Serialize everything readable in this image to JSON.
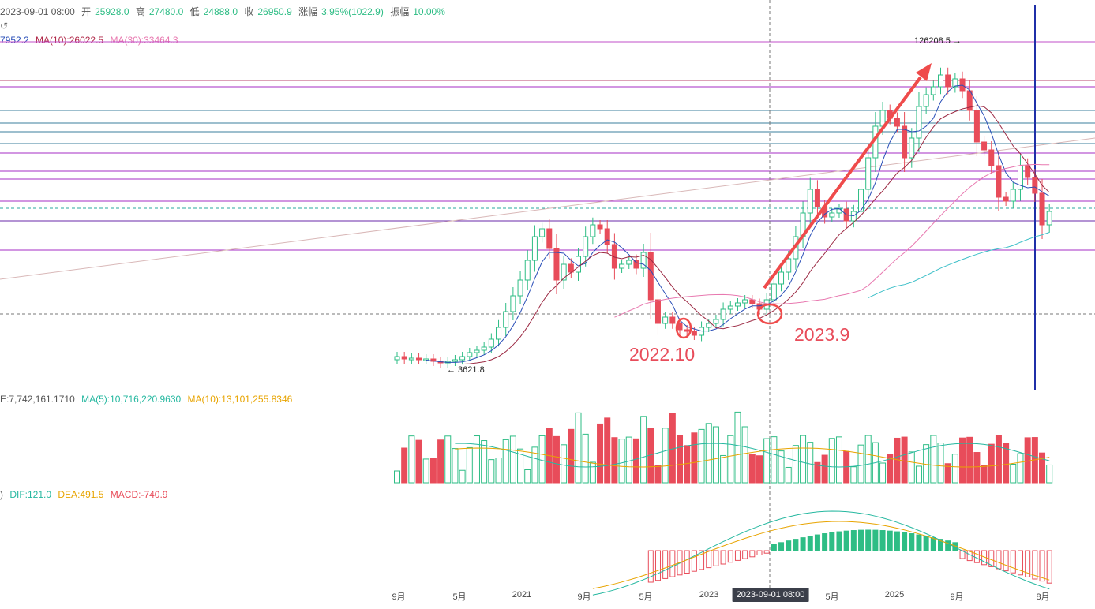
{
  "header": {
    "date": "2023-09-01 08:00",
    "open_label": "开",
    "open": "25928.0",
    "high_label": "高",
    "high": "27480.0",
    "low_label": "低",
    "low": "24888.0",
    "close_label": "收",
    "close": "26950.9",
    "change_label": "涨幅",
    "change": "3.95%(1022.9)",
    "amplitude_label": "振幅",
    "amplitude": "10.00%"
  },
  "ma_line": {
    "ma5": "7952.2",
    "ma10": "MA(10):26022.5",
    "ma30": "MA(30):33464.3"
  },
  "volume": {
    "value": "E:7,742,161.1710",
    "ma5": "MA(5):10,716,220.9630",
    "ma10": "MA(10):13,101,255.8346"
  },
  "macd": {
    "prefix": ")",
    "dif": "DIF:121.0",
    "dea": "DEA:491.5",
    "macd": "MACD:-740.9"
  },
  "markers": {
    "low_price": "← 3621.8",
    "high_price": "126208.5 →"
  },
  "annotations": {
    "a1": "2022.10",
    "a2": "2023.9"
  },
  "xaxis": {
    "ticks": [
      "9月",
      "5月",
      "2021",
      "9月",
      "5月",
      "2023",
      "5月",
      "2025",
      "9月",
      "8月"
    ],
    "highlight": "2023-09-01 08:00"
  },
  "colors": {
    "up": "#2ebd85",
    "down": "#e84c5a",
    "ma5": "#2a4fb8",
    "ma10": "#9c2a44",
    "ma30": "#e879b0",
    "ma_long": "#3fc0c9"
  }
}
